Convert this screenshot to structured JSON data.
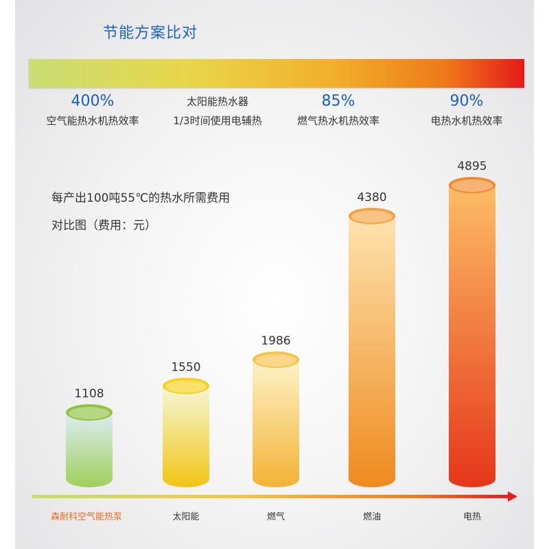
{
  "header": {
    "title": "节能方案比对"
  },
  "efficiency": [
    {
      "value": "400%",
      "label": "空气能热水机热效率"
    },
    {
      "value": "太阳能热水器",
      "label": "1/3时间使用电辅热"
    },
    {
      "value": "85%",
      "label": "燃气热水机热效率"
    },
    {
      "value": "90%",
      "label": "电热水机热效率"
    }
  ],
  "chart_data": {
    "type": "bar",
    "title": "每产出100吨55℃的热水所需费用",
    "subtitle": "对比图（费用：元）",
    "categories": [
      "森耐科空气能热泵",
      "太阳能",
      "燃气",
      "燃油",
      "电热"
    ],
    "values": [
      1108,
      1550,
      1986,
      4380,
      4895
    ],
    "highlight_category_color": "#f26a1b",
    "bar_colors": [
      {
        "top": "#8fc23e",
        "body_light": "#dcecf5",
        "body_dark": "#9fd05a"
      },
      {
        "top": "#f6d21c",
        "body_light": "#f4f7d8",
        "body_dark": "#f2c513"
      },
      {
        "top": "#f7c245",
        "body_light": "#fdf3c8",
        "body_dark": "#f3b235"
      },
      {
        "top": "#f5a23e",
        "body_light": "#fde3b0",
        "body_dark": "#ef8a1e"
      },
      {
        "top": "#f28a2a",
        "body_light": "#fdbd66",
        "body_dark": "#e5361a"
      }
    ]
  }
}
